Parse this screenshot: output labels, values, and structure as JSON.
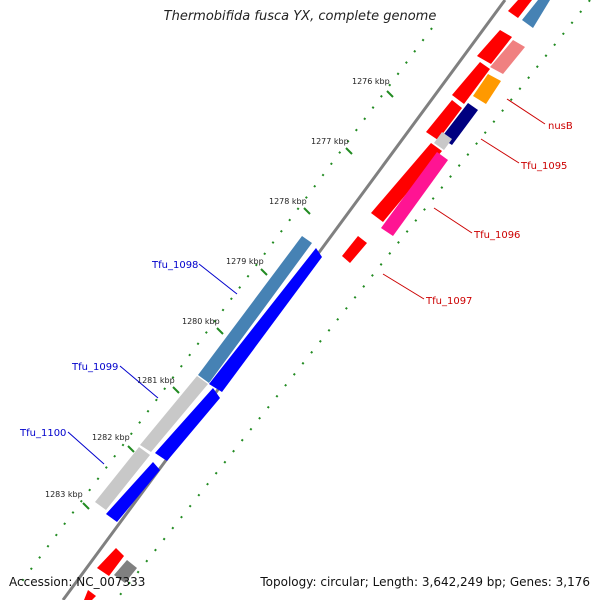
{
  "title": "Thermobifida fusca YX, complete genome",
  "accession": "Accession: NC_007333",
  "summary": "Topology: circular; Length: 3,642,249 bp; Genes: 3,176",
  "ticks": [
    {
      "label": "1276 kbp"
    },
    {
      "label": "1277 kbp"
    },
    {
      "label": "1278 kbp"
    },
    {
      "label": "1279 kbp"
    },
    {
      "label": "1280 kbp"
    },
    {
      "label": "1281 kbp"
    },
    {
      "label": "1282 kbp"
    },
    {
      "label": "1283 kbp"
    }
  ],
  "gene_labels": [
    {
      "name": "nusB",
      "strand": "reverse",
      "color": "#cc0000"
    },
    {
      "name": "Tfu_1095",
      "strand": "reverse",
      "color": "#cc0000"
    },
    {
      "name": "Tfu_1096",
      "strand": "reverse",
      "color": "#cc0000"
    },
    {
      "name": "Tfu_1097",
      "strand": "reverse",
      "color": "#cc0000"
    },
    {
      "name": "Tfu_1098",
      "strand": "forward",
      "color": "#0000cc"
    },
    {
      "name": "Tfu_1099",
      "strand": "forward",
      "color": "#0000cc"
    },
    {
      "name": "Tfu_1100",
      "strand": "forward",
      "color": "#0000cc"
    }
  ],
  "colors": {
    "backbone": "#808080",
    "forward_cds": "#0000ff",
    "reverse_cds": "#ff0000",
    "tick_dots": "#228b22",
    "steelblue": "#4682b4",
    "lightgray": "#c8c8c8",
    "pink": "#ff1493",
    "salmon": "#f08080",
    "orange": "#ff9900",
    "navy": "#000080"
  }
}
